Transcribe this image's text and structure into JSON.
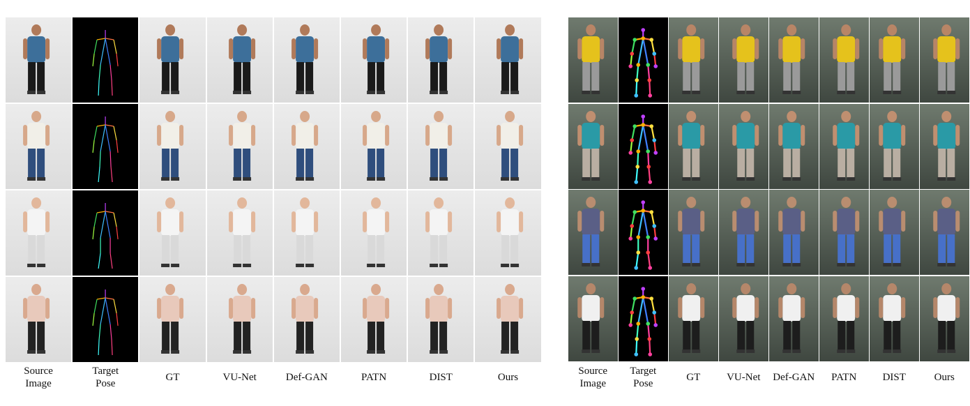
{
  "figure_left": {
    "columns": [
      "Source\nImage",
      "Target\nPose",
      "GT",
      "VU-Net",
      "Def-GAN",
      "PATN",
      "DIST",
      "Ours"
    ],
    "rows": 4
  },
  "figure_right": {
    "columns": [
      "Source\nImage",
      "Target\nPose",
      "GT",
      "VU-Net",
      "Def-GAN",
      "PATN",
      "DIST",
      "Ours"
    ],
    "rows": 4
  }
}
